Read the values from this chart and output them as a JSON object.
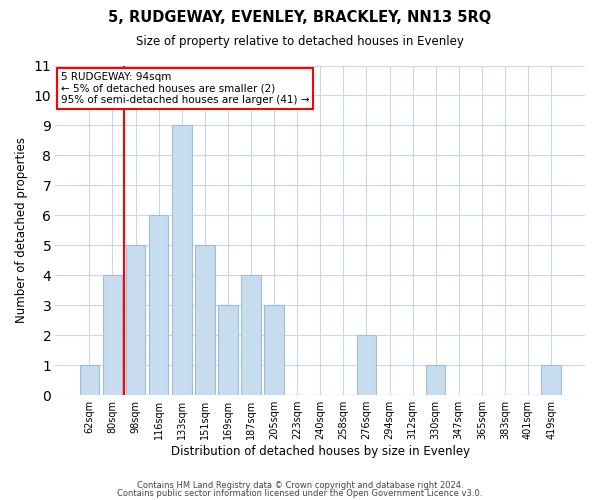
{
  "title": "5, RUDGEWAY, EVENLEY, BRACKLEY, NN13 5RQ",
  "subtitle": "Size of property relative to detached houses in Evenley",
  "xlabel": "Distribution of detached houses by size in Evenley",
  "ylabel": "Number of detached properties",
  "bar_labels": [
    "62sqm",
    "80sqm",
    "98sqm",
    "116sqm",
    "133sqm",
    "151sqm",
    "169sqm",
    "187sqm",
    "205sqm",
    "223sqm",
    "240sqm",
    "258sqm",
    "276sqm",
    "294sqm",
    "312sqm",
    "330sqm",
    "347sqm",
    "365sqm",
    "383sqm",
    "401sqm",
    "419sqm"
  ],
  "bar_values": [
    1,
    4,
    5,
    6,
    9,
    5,
    3,
    4,
    3,
    0,
    0,
    0,
    2,
    0,
    0,
    1,
    0,
    0,
    0,
    0,
    1
  ],
  "bar_color": "#c8dcf0",
  "bar_edge_color": "#a0bcd8",
  "ylim": [
    0,
    11
  ],
  "yticks": [
    0,
    1,
    2,
    3,
    4,
    5,
    6,
    7,
    8,
    9,
    10,
    11
  ],
  "annotation_box_text": "5 RUDGEWAY: 94sqm\n← 5% of detached houses are smaller (2)\n95% of semi-detached houses are larger (41) →",
  "red_line_x": 1.5,
  "grid_color": "#c8d8e8",
  "footnote1": "Contains HM Land Registry data © Crown copyright and database right 2024.",
  "footnote2": "Contains public sector information licensed under the Open Government Licence v3.0."
}
